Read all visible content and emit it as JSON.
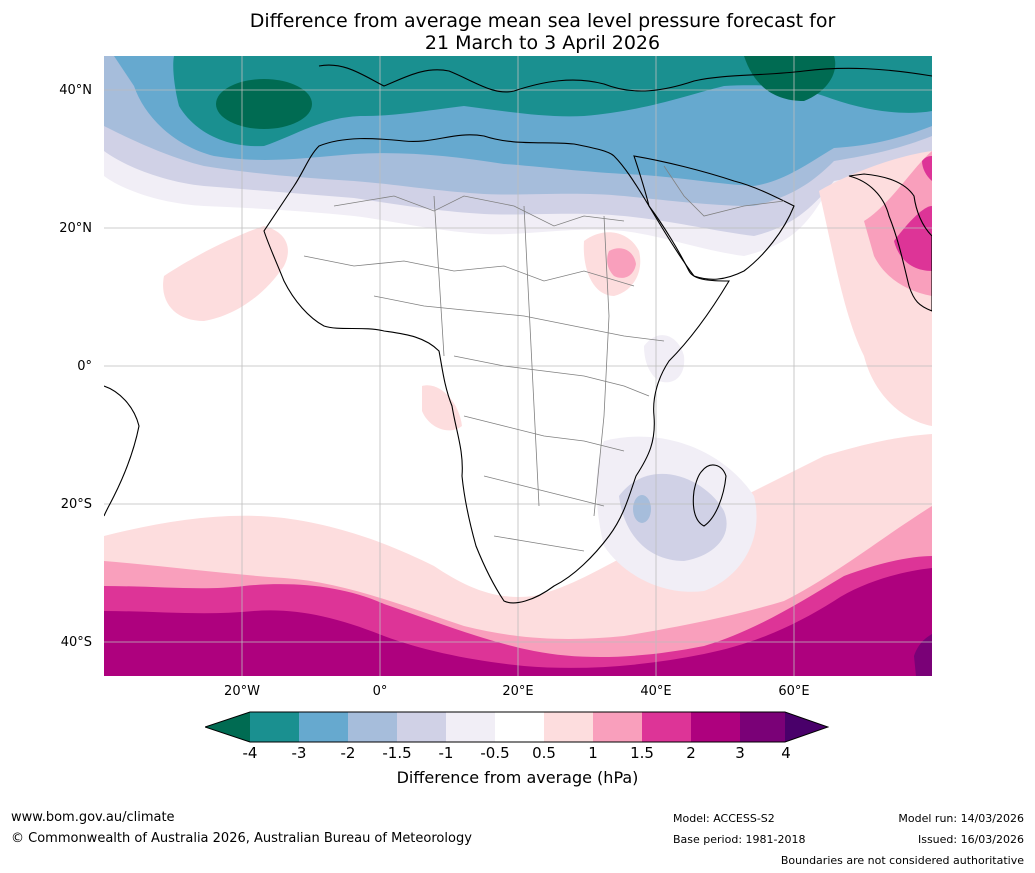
{
  "title": {
    "line1": "Difference from average mean sea level pressure forecast for",
    "line2": "21 March to 3 April 2026"
  },
  "axes": {
    "lat_labels": [
      "40°N",
      "20°N",
      "0°",
      "20°S",
      "40°S"
    ],
    "lon_labels": [
      "20°W",
      "0°",
      "20°E",
      "40°E",
      "60°E"
    ]
  },
  "legend": {
    "ticks": [
      "-4",
      "-3",
      "-2",
      "-1.5",
      "-1",
      "-0.5",
      "0.5",
      "1",
      "1.5",
      "2",
      "3",
      "4"
    ],
    "label": "Difference from average (hPa)",
    "colors": {
      "lt_m4": "#006b52",
      "m4_m3": "#1a9090",
      "m3_m2": "#66a9cf",
      "m2_m15": "#a6bddb",
      "m15_m1": "#d0d1e6",
      "m1_m05": "#f1eef6",
      "neutral": "#ffffff",
      "p05_p1": "#fdddde",
      "p1_p15": "#f99fbc",
      "p15_p2": "#dd3497",
      "p2_p3": "#ae017e",
      "p3_p4": "#7a0177",
      "gt_p4": "#49006a"
    }
  },
  "footer": {
    "website": "www.bom.gov.au/climate",
    "copyright": "© Commonwealth of Australia 2026, Australian Bureau of Meteorology",
    "model": "Model: ACCESS-S2",
    "base_period": "Base period: 1981-2018",
    "model_run": "Model run: 14/03/2026",
    "issued": "Issued: 16/03/2026",
    "disclaimer": "Boundaries are not considered authoritative"
  }
}
